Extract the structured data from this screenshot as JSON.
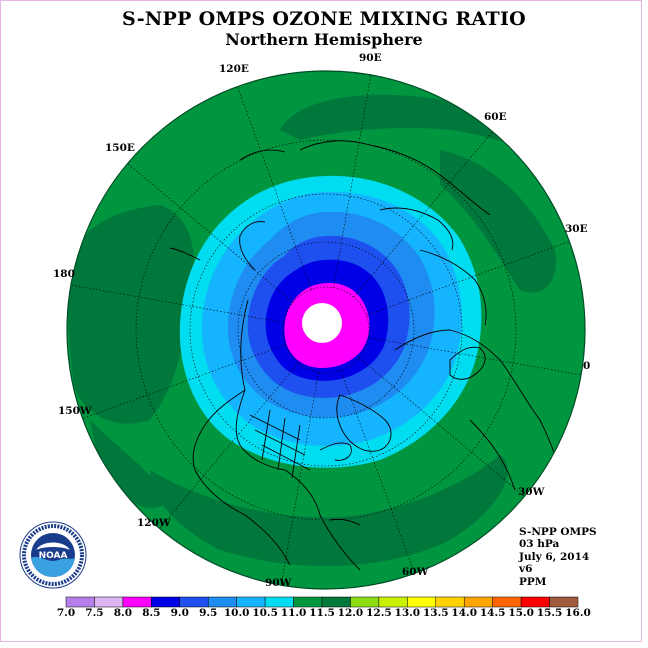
{
  "title": "S-NPP OMPS OZONE MIXING RATIO",
  "subtitle": "Northern Hemisphere",
  "longitude_labels": [
    {
      "id": "90e",
      "text": "90E"
    },
    {
      "id": "60e",
      "text": "60E"
    },
    {
      "id": "30e",
      "text": "30E"
    },
    {
      "id": "0",
      "text": "0"
    },
    {
      "id": "30w",
      "text": "30W"
    },
    {
      "id": "60w",
      "text": "60W"
    },
    {
      "id": "90w",
      "text": "90W"
    },
    {
      "id": "120w",
      "text": "120W"
    },
    {
      "id": "150w",
      "text": "150W"
    },
    {
      "id": "180",
      "text": "180"
    },
    {
      "id": "150e",
      "text": "150E"
    },
    {
      "id": "120e",
      "text": "120E"
    }
  ],
  "info": {
    "instrument": "S-NPP OMPS",
    "level": "03 hPa",
    "date": "July 6, 2014",
    "version": "v6",
    "units": "PPM"
  },
  "logo": {
    "text": "NOAA",
    "icon": "noaa-logo-icon"
  },
  "colorbar": {
    "ticks": [
      "7.0",
      "7.5",
      "8.0",
      "8.5",
      "9.0",
      "9.5",
      "10.0",
      "10.5",
      "11.0",
      "11.5",
      "12.0",
      "12.5",
      "13.0",
      "13.5",
      "14.0",
      "14.5",
      "15.0",
      "15.5",
      "16.0"
    ],
    "colors": [
      "#b57ee8",
      "#dcb4f0",
      "#ff00ff",
      "#0000e6",
      "#1e50f0",
      "#1e8cf0",
      "#14b4ff",
      "#00dcf0",
      "#009640",
      "#00783c",
      "#8cdc14",
      "#c8f000",
      "#ffff00",
      "#ffd200",
      "#ffa500",
      "#ff6400",
      "#ff0000",
      "#a05a3c"
    ]
  },
  "chart_data": {
    "type": "polar-stereographic-contour-map",
    "projection": "north-polar-stereographic",
    "variable": "Ozone mixing ratio",
    "units": "PPM",
    "level": "03 hPa",
    "date": "July 6, 2014",
    "hemisphere": "Northern Hemisphere",
    "contour_levels": [
      7.0,
      7.5,
      8.0,
      8.5,
      9.0,
      9.5,
      10.0,
      10.5,
      11.0,
      11.5,
      12.0,
      12.5,
      13.0,
      13.5,
      14.0,
      14.5,
      15.0,
      15.5,
      16.0
    ],
    "bands_from_pole_outward": [
      {
        "range": [
          8.0,
          8.5
        ],
        "color": "#ff00ff"
      },
      {
        "range": [
          8.5,
          9.0
        ],
        "color": "#0000e6"
      },
      {
        "range": [
          9.0,
          9.5
        ],
        "color": "#1e50f0"
      },
      {
        "range": [
          9.5,
          10.0
        ],
        "color": "#1e8cf0"
      },
      {
        "range": [
          10.0,
          10.5
        ],
        "color": "#14b4ff"
      },
      {
        "range": [
          10.5,
          11.0
        ],
        "color": "#00dcf0"
      },
      {
        "range": [
          11.0,
          11.5
        ],
        "color": "#009640"
      },
      {
        "range": [
          11.5,
          12.0
        ],
        "color": "#00783c"
      }
    ],
    "polar_no_data": true
  }
}
